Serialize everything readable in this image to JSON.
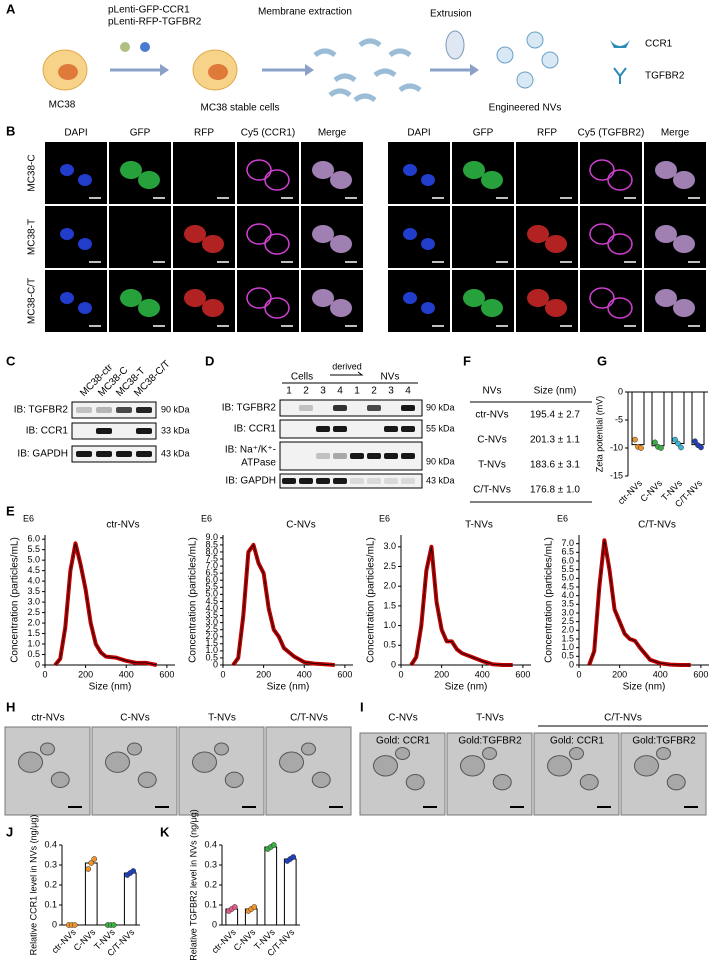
{
  "panels": {
    "A": {
      "label": "A",
      "vector1": "pLenti-GFP-CCR1",
      "vector2": "pLenti-RFP-TGFBR2",
      "step1": "Membrane extraction",
      "step2": "Extrusion",
      "cell": "MC38",
      "stable": "MC38 stable cells",
      "product": "Engineered NVs",
      "legend1": "CCR1",
      "legend2": "TGFBR2"
    },
    "B": {
      "label": "B",
      "left_columns": [
        "DAPI",
        "GFP",
        "RFP",
        "Cy5 (CCR1)",
        "Merge"
      ],
      "right_columns": [
        "DAPI",
        "GFP",
        "RFP",
        "Cy5 (TGFBR2)",
        "Merge"
      ],
      "rows": [
        "MC38-C",
        "MC38-T",
        "MC38-C/T"
      ]
    },
    "C": {
      "label": "C",
      "lanes": [
        "MC38-ctr",
        "MC38-C",
        "MC38-T",
        "MC38-C/T"
      ],
      "rows": [
        "IB: TGFBR2",
        "IB: CCR1",
        "IB: GAPDH"
      ],
      "kda": [
        "90 kDa",
        "33 kDa",
        "43 kDa"
      ]
    },
    "D": {
      "label": "D",
      "cells": "Cells",
      "derived": "derived",
      "nvs": "NVs",
      "lanes": [
        "1",
        "2",
        "3",
        "4",
        "1",
        "2",
        "3",
        "4"
      ],
      "rows": [
        "IB: TGFBR2",
        "IB: CCR1",
        "IB: Na⁺/K⁺-",
        "ATPase",
        "IB: GAPDH"
      ],
      "kda": [
        "90 kDa",
        "55 kDa",
        "90 kDa",
        "43 kDa"
      ]
    },
    "E": {
      "label": "E"
    },
    "F": {
      "label": "F",
      "header": [
        "NVs",
        "Size (nm)"
      ],
      "rows": [
        [
          "ctr-NVs",
          "195.4 ± 2.7"
        ],
        [
          "C-NVs",
          "201.3 ± 1.1"
        ],
        [
          "T-NVs",
          "183.6 ± 3.1"
        ],
        [
          "C/T-NVs",
          "176.8 ± 1.0"
        ]
      ]
    },
    "G": {
      "label": "G"
    },
    "H": {
      "label": "H",
      "images": [
        "ctr-NVs",
        "C-NVs",
        "T-NVs",
        "C/T-NVs"
      ]
    },
    "I": {
      "label": "I",
      "groups": [
        "C-NVs",
        "T-NVs",
        "C/T-NVs"
      ],
      "images": [
        "Gold: CCR1",
        "Gold:TGFBR2",
        "Gold: CCR1",
        "Gold:TGFBR2"
      ]
    },
    "J": {
      "label": "J"
    },
    "K": {
      "label": "K"
    }
  },
  "chart_data": [
    {
      "type": "line",
      "title": "ctr-NVs",
      "multiplier": "E6",
      "ylabel": "Concentration (particles/mL)",
      "xlabel": "Size (nm)",
      "color": "#c00000",
      "x": [
        50,
        75,
        100,
        125,
        150,
        175,
        200,
        225,
        250,
        275,
        300,
        350,
        400,
        450,
        500,
        550
      ],
      "values": [
        0,
        0.3,
        1.8,
        4.5,
        5.8,
        4.8,
        3.6,
        2.0,
        1.0,
        0.6,
        0.4,
        0.35,
        0.2,
        0.1,
        0.1,
        0
      ],
      "xlim": [
        0,
        640
      ],
      "xticks": [
        0,
        200,
        400,
        600
      ],
      "ylim": [
        0,
        6.2
      ],
      "yticks": [
        0,
        0.5,
        {
          "value": 1,
          "label": "1.0"
        },
        1.5,
        {
          "value": 2,
          "label": "2.0"
        },
        2.5,
        {
          "value": 3,
          "label": "3.0"
        },
        3.5,
        {
          "value": 4,
          "label": "4.0"
        },
        4.5,
        {
          "value": 5,
          "label": "5.0"
        },
        5.5,
        {
          "value": 6,
          "label": "6.0"
        }
      ]
    },
    {
      "type": "line",
      "title": "C-NVs",
      "multiplier": "E6",
      "ylabel": "Concentration (particles/mL)",
      "xlabel": "Size (nm)",
      "color": "#c00000",
      "x": [
        50,
        75,
        100,
        125,
        150,
        175,
        200,
        225,
        250,
        275,
        300,
        350,
        400,
        450,
        500,
        550
      ],
      "values": [
        0,
        0.5,
        3.5,
        8.0,
        8.5,
        7.2,
        6.5,
        4.0,
        2.5,
        2.0,
        1.2,
        0.6,
        0.2,
        0.1,
        0.05,
        0
      ],
      "xlim": [
        0,
        640
      ],
      "xticks": [
        0,
        200,
        400,
        600
      ],
      "ylim": [
        0,
        9.2
      ],
      "yticks": [
        0,
        0.5,
        {
          "value": 1,
          "label": "1.0"
        },
        1.5,
        {
          "value": 2,
          "label": "2.0"
        },
        2.5,
        {
          "value": 3,
          "label": "3.0"
        },
        3.5,
        {
          "value": 4,
          "label": "4.0"
        },
        4.5,
        {
          "value": 5,
          "label": "5.0"
        },
        5.5,
        {
          "value": 6,
          "label": "6.0"
        },
        6.5,
        {
          "value": 7,
          "label": "7.0"
        },
        7.5,
        {
          "value": 8,
          "label": "8.0"
        },
        8.5,
        {
          "value": 9,
          "label": "9.0"
        }
      ]
    },
    {
      "type": "line",
      "title": "T-NVs",
      "multiplier": "E6",
      "ylabel": "Concentration (particles/mL)",
      "xlabel": "Size (nm)",
      "color": "#c00000",
      "x": [
        50,
        75,
        100,
        125,
        150,
        175,
        200,
        225,
        250,
        275,
        300,
        350,
        400,
        450,
        500,
        550
      ],
      "values": [
        0,
        0.2,
        1.0,
        2.4,
        3.0,
        1.6,
        0.9,
        0.6,
        0.6,
        0.4,
        0.3,
        0.2,
        0.1,
        0.02,
        0,
        0
      ],
      "xlim": [
        0,
        640
      ],
      "xticks": [
        0,
        200,
        400,
        600
      ],
      "ylim": [
        0,
        3.3
      ],
      "yticks": [
        0,
        0.5,
        {
          "value": 1,
          "label": "1.0"
        },
        1.5,
        {
          "value": 2,
          "label": "2.0"
        },
        2.5,
        {
          "value": 3,
          "label": "3.0"
        }
      ]
    },
    {
      "type": "line",
      "title": "C/T-NVs",
      "multiplier": "E6",
      "ylabel": "Concentration (particles/mL)",
      "xlabel": "Size (nm)",
      "color": "#c00000",
      "x": [
        50,
        75,
        100,
        125,
        150,
        175,
        200,
        225,
        250,
        275,
        300,
        350,
        400,
        450,
        500,
        550
      ],
      "values": [
        0,
        0.8,
        4.5,
        7.2,
        5.5,
        3.2,
        2.5,
        1.8,
        1.5,
        1.4,
        1.0,
        0.3,
        0.1,
        0.02,
        0,
        0
      ],
      "xlim": [
        0,
        640
      ],
      "xticks": [
        0,
        200,
        400,
        600
      ],
      "ylim": [
        0,
        7.5
      ],
      "yticks": [
        0,
        0.5,
        {
          "value": 1,
          "label": "1.0"
        },
        1.5,
        {
          "value": 2,
          "label": "2.0"
        },
        2.5,
        {
          "value": 3,
          "label": "3.0"
        },
        3.5,
        {
          "value": 4,
          "label": "4.0"
        },
        4.5,
        {
          "value": 5,
          "label": "5.0"
        },
        5.5,
        {
          "value": 6,
          "label": "6.0"
        },
        6.5,
        {
          "value": 7,
          "label": "7.0"
        }
      ]
    },
    {
      "type": "bar",
      "ylabel": "Zeta potential (mV)",
      "categories": [
        "ctr-NVs",
        "C-NVs",
        "T-NVs",
        "C/T-NVs"
      ],
      "values": [
        -9.4,
        -9.6,
        -9.2,
        -9.4
      ],
      "points": [
        [
          -8.5,
          -9.8,
          -10.0
        ],
        [
          -9.0,
          -9.8,
          -10.0
        ],
        [
          -8.5,
          -9.2,
          -9.9
        ],
        [
          -8.8,
          -9.5,
          -9.9
        ]
      ],
      "colors": [
        "#f0932b",
        "#3cb043",
        "#35b7d6",
        "#1f3fbf"
      ],
      "ylim": [
        -15,
        0
      ],
      "yticks": [
        -15,
        -10,
        -5,
        0
      ]
    },
    {
      "type": "bar",
      "ylabel": "Relative CCR1 level in NVs (ng/μg)",
      "categories": [
        "ctr-NVs",
        "C-NVs",
        "T-NVs",
        "C/T-NVs"
      ],
      "values": [
        0,
        0.31,
        0,
        0.26
      ],
      "points": [
        [
          0,
          0,
          0
        ],
        [
          0.28,
          0.31,
          0.33
        ],
        [
          0,
          0,
          0
        ],
        [
          0.25,
          0.26,
          0.27
        ]
      ],
      "colors": [
        "#f0932b",
        "#f0932b",
        "#3cb043",
        "#1f3fbf"
      ],
      "ylim": [
        0,
        0.4
      ],
      "yticks": [
        0,
        0.1,
        0.2,
        0.3,
        0.4
      ]
    },
    {
      "type": "bar",
      "ylabel": "Relative TGFBR2 level in NVs (ng/μg)",
      "categories": [
        "ctr-NVs",
        "C-NVs",
        "T-NVs",
        "C/T-NVs"
      ],
      "values": [
        0.08,
        0.08,
        0.39,
        0.33
      ],
      "points": [
        [
          0.07,
          0.08,
          0.09
        ],
        [
          0.07,
          0.08,
          0.09
        ],
        [
          0.38,
          0.39,
          0.4
        ],
        [
          0.32,
          0.33,
          0.34
        ]
      ],
      "colors": [
        "#e05a8a",
        "#f0932b",
        "#3cb043",
        "#1f3fbf"
      ],
      "ylim": [
        0,
        0.4
      ],
      "yticks": [
        0,
        0.1,
        0.2,
        0.3,
        0.4
      ]
    }
  ]
}
